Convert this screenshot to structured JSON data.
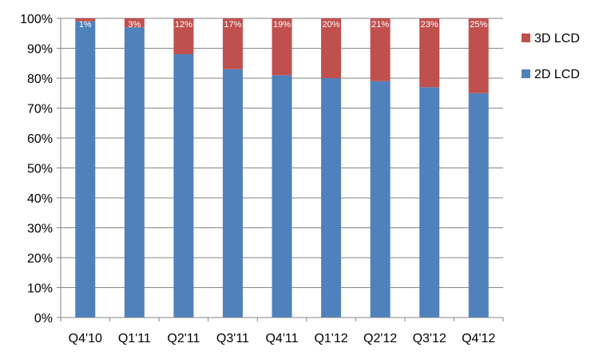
{
  "chart_data": {
    "type": "bar",
    "stacked": true,
    "percent": true,
    "categories": [
      "Q4'10",
      "Q1'11",
      "Q2'11",
      "Q3'11",
      "Q4'11",
      "Q1'12",
      "Q2'12",
      "Q3'12",
      "Q4'12"
    ],
    "series": [
      {
        "name": "2D LCD",
        "values": [
          99,
          97,
          88,
          83,
          81,
          80,
          79,
          77,
          75
        ],
        "color": "#4F81BD"
      },
      {
        "name": "3D LCD",
        "values": [
          1,
          3,
          12,
          17,
          19,
          20,
          21,
          23,
          25
        ],
        "color": "#C0504D",
        "labels": [
          "1%",
          "3%",
          "12%",
          "17%",
          "19%",
          "20%",
          "21%",
          "23%",
          "25%"
        ]
      }
    ],
    "y_ticks": [
      "0%",
      "10%",
      "20%",
      "30%",
      "40%",
      "50%",
      "60%",
      "70%",
      "80%",
      "90%",
      "100%"
    ],
    "ylim": [
      0,
      100
    ],
    "grid": true,
    "legend_position": "right"
  }
}
